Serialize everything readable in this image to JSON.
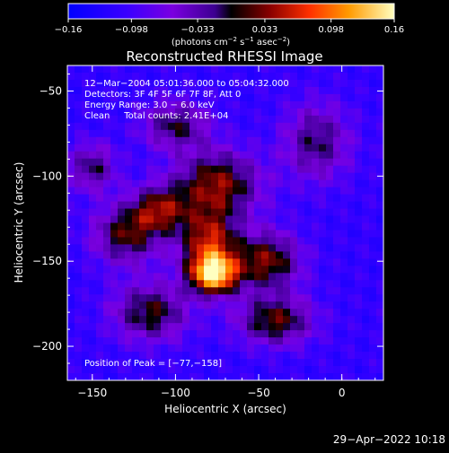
{
  "chart_data": {
    "type": "heatmap",
    "title": "Reconstructed RHESSI Image",
    "xlabel": "Heliocentric X (arcsec)",
    "ylabel": "Heliocentric Y (arcsec)",
    "xlim": [
      -165,
      25
    ],
    "ylim": [
      -220,
      -35
    ],
    "x_ticks": [
      -150,
      -100,
      -50,
      0
    ],
    "y_ticks": [
      -50,
      -100,
      -150,
      -200
    ],
    "x_tick_labels": [
      "−150",
      "−100",
      "−50",
      "0"
    ],
    "y_tick_labels": [
      "−50",
      "−100",
      "−150",
      "−200"
    ],
    "colorbar": {
      "range": [
        -0.16,
        0.16
      ],
      "ticks": [
        -0.16,
        -0.098,
        -0.033,
        0.033,
        0.098,
        0.16
      ],
      "tick_labels": [
        "−0.16",
        "−0.098",
        "−0.033",
        "0.033",
        "0.098",
        "0.16"
      ],
      "unit_text": "(photons cm",
      "unit_exp1": "−2",
      "unit_mid": " s",
      "unit_exp2": "−1",
      "unit_mid2": " asec",
      "unit_exp3": "−2",
      "unit_end": ")"
    },
    "annotations": [
      "12−Mar−2004 05:01:36.000 to 05:04:32.000",
      "Detectors: 3F 4F 5F 6F 7F 8F, Att 0",
      "Energy Range: 3.0 − 6.0 keV",
      "Clean     Total counts: 2.41E+04"
    ],
    "peak_label": "Position of Peak = [−77,−158]",
    "peak_position": [
      -77,
      -158
    ],
    "sources": [
      {
        "x": -75,
        "y": -105,
        "sx": 18,
        "sy": 14,
        "amp": 0.085
      },
      {
        "x": -110,
        "y": -120,
        "sx": 12,
        "sy": 10,
        "amp": 0.07
      },
      {
        "x": -130,
        "y": -135,
        "sx": 14,
        "sy": 12,
        "amp": 0.06
      },
      {
        "x": -80,
        "y": -140,
        "sx": 12,
        "sy": 14,
        "amp": 0.1
      },
      {
        "x": -77,
        "y": -158,
        "sx": 10,
        "sy": 8,
        "amp": 0.16
      },
      {
        "x": -45,
        "y": -150,
        "sx": 14,
        "sy": 12,
        "amp": 0.08
      },
      {
        "x": -40,
        "y": -185,
        "sx": 16,
        "sy": 10,
        "amp": 0.07
      },
      {
        "x": -115,
        "y": -180,
        "sx": 16,
        "sy": 12,
        "amp": 0.06
      },
      {
        "x": -150,
        "y": -95,
        "sx": 10,
        "sy": 10,
        "amp": 0.04
      },
      {
        "x": -15,
        "y": -80,
        "sx": 14,
        "sy": 16,
        "amp": 0.04
      },
      {
        "x": -100,
        "y": -70,
        "sx": 14,
        "sy": 10,
        "amp": 0.045
      }
    ]
  },
  "footer": {
    "timestamp": "29−Apr−2022 10:18"
  }
}
